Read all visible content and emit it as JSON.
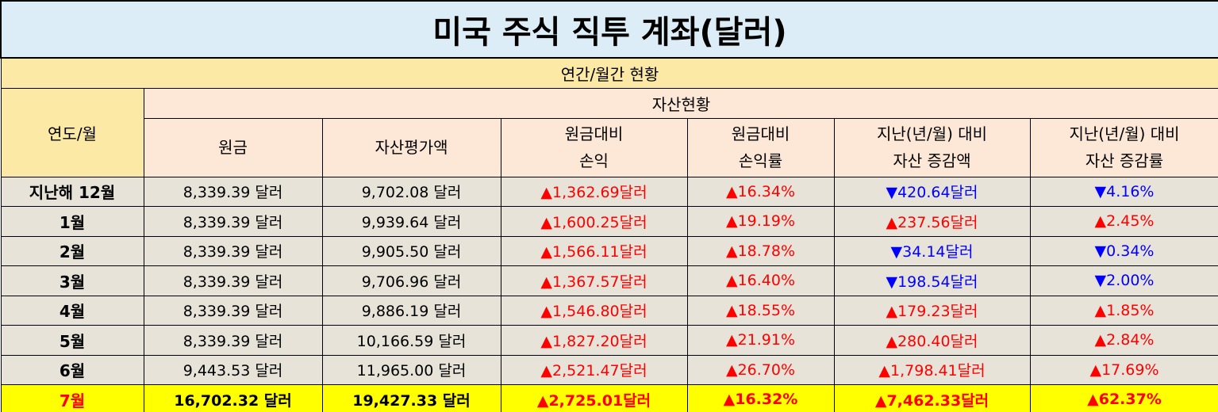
{
  "title": "미국 주식 직투 계좌(달러)",
  "subtitle": "연간/월간 현황",
  "headers": {
    "year_month": "연도/월",
    "asset_status": "자산현황",
    "principal": "원금",
    "asset_value": "자산평가액",
    "pl_line1": "원금대비",
    "pl_line2": "손익",
    "pl_rate_line1": "원금대비",
    "pl_rate_line2": "손익률",
    "change_line1": "지난(년/월) 대비",
    "change_line2": "자산 증감액",
    "change_rate_line1": "지난(년/월) 대비",
    "change_rate_line2": "자산 증감률"
  },
  "rows": [
    {
      "label": "지난해 12월",
      "principal": "8,339.39 달러",
      "asset_value": "9,702.08 달러",
      "pl": "▲1,362.69달러",
      "pl_rate": "▲16.34%",
      "change": "▼420.64달러",
      "change_rate": "▼4.16%"
    },
    {
      "label": "1월",
      "principal": "8,339.39 달러",
      "asset_value": "9,939.64 달러",
      "pl": "▲1,600.25달러",
      "pl_rate": "▲19.19%",
      "change": "▲237.56달러",
      "change_rate": "▲2.45%"
    },
    {
      "label": "2월",
      "principal": "8,339.39 달러",
      "asset_value": "9,905.50 달러",
      "pl": "▲1,566.11달러",
      "pl_rate": "▲18.78%",
      "change": "▼34.14달러",
      "change_rate": "▼0.34%"
    },
    {
      "label": "3월",
      "principal": "8,339.39 달러",
      "asset_value": "9,706.96 달러",
      "pl": "▲1,367.57달러",
      "pl_rate": "▲16.40%",
      "change": "▼198.54달러",
      "change_rate": "▼2.00%"
    },
    {
      "label": "4월",
      "principal": "8,339.39 달러",
      "asset_value": "9,886.19 달러",
      "pl": "▲1,546.80달러",
      "pl_rate": "▲18.55%",
      "change": "▲179.23달러",
      "change_rate": "▲1.85%"
    },
    {
      "label": "5월",
      "principal": "8,339.39 달러",
      "asset_value": "10,166.59 달러",
      "pl": "▲1,827.20달러",
      "pl_rate": "▲21.91%",
      "change": "▲280.40달러",
      "change_rate": "▲2.84%"
    },
    {
      "label": "6월",
      "principal": "9,443.53 달러",
      "asset_value": "11,965.00 달러",
      "pl": "▲2,521.47달러",
      "pl_rate": "▲26.70%",
      "change": "▲1,798.41달러",
      "change_rate": "▲17.69%"
    },
    {
      "label": "7월",
      "principal": "16,702.32 달러",
      "asset_value": "19,427.33 달러",
      "pl": "▲2,725.01달러",
      "pl_rate": "▲16.32%",
      "change": "▲7,462.33달러",
      "change_rate": "▲62.37%"
    }
  ],
  "colors": {
    "title_bg": "#dcedf7",
    "subtitle_bg": "#fde9a6",
    "header_bg": "#fde7d6",
    "row_bg": "#e8e3d8",
    "highlight_bg": "#ffff00",
    "up": "#ff0000",
    "down": "#0000ff"
  }
}
